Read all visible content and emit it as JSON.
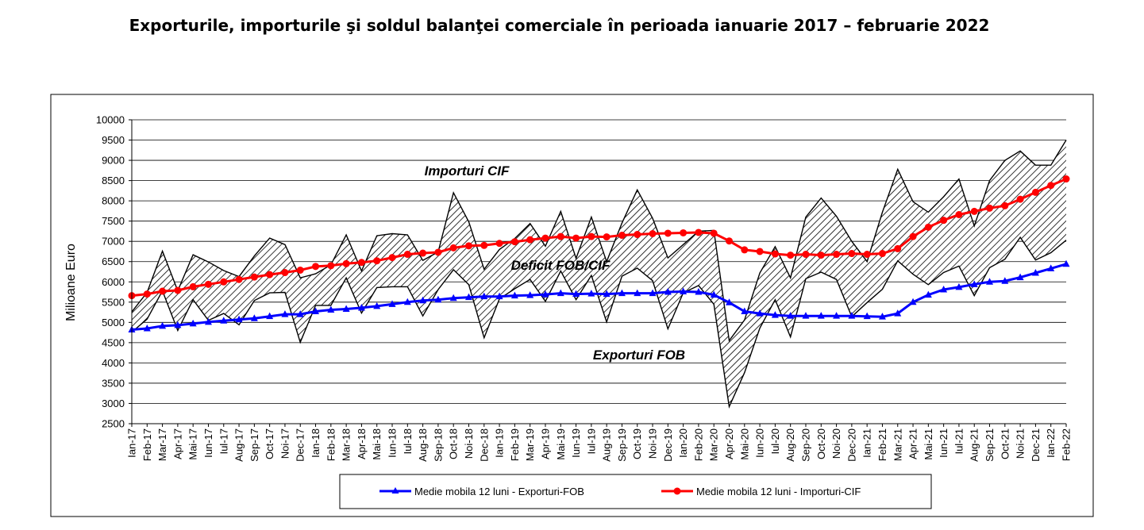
{
  "title": "Exporturile, importurile şi soldul balanţei comerciale în perioada ianuarie 2017 – februarie 2022",
  "colors": {
    "exports_ma": "#0000ff",
    "imports_ma": "#ff0000",
    "monthly_lines": "#000000",
    "hatch": "#000000"
  },
  "chart_data": {
    "type": "line",
    "title": "Exporturile, importurile şi soldul balanţei comerciale în perioada ianuarie 2017 – februarie 2022",
    "ylabel": "Milioane Euro",
    "xlabel": "",
    "ylim": [
      2500,
      10000
    ],
    "ytick_step": 500,
    "grid": "horizontal",
    "legend_position": "bottom",
    "area": "hatched band between monthly Exporturi FOB and Importuri CIF",
    "categories": [
      "Ian-17",
      "Feb-17",
      "Mar-17",
      "Apr-17",
      "Mai-17",
      "Iun-17",
      "Iul-17",
      "Aug-17",
      "Sep-17",
      "Oct-17",
      "Noi-17",
      "Dec-17",
      "Ian-18",
      "Feb-18",
      "Mar-18",
      "Apr-18",
      "Mai-18",
      "Iun-18",
      "Iul-18",
      "Aug-18",
      "Sep-18",
      "Oct-18",
      "Noi-18",
      "Dec-18",
      "Ian-19",
      "Feb-19",
      "Mar-19",
      "Apr-19",
      "Mai-19",
      "Iun-19",
      "Iul-19",
      "Aug-19",
      "Sep-19",
      "Oct-19",
      "Noi-19",
      "Dec-19",
      "Ian-20",
      "Feb-20",
      "Mar-20",
      "Apr-20",
      "Mai-20",
      "Iun-20",
      "Iul-20",
      "Aug-20",
      "Sep-20",
      "Oct-20",
      "Noi-20",
      "Dec-20",
      "Ian-21",
      "Feb-21",
      "Mar-21",
      "Apr-21",
      "Mai-21",
      "Iun-21",
      "Iul-21",
      "Aug-21",
      "Sep-21",
      "Oct-21",
      "Noi-21",
      "Dec-21",
      "Ian-22",
      "Feb-22"
    ],
    "annotations": [
      "Importuri CIF",
      "Deficit FOB/CIF",
      "Exporturi FOB"
    ],
    "series": [
      {
        "name": "Medie mobila 12 luni - Exporturi-FOB",
        "color": "#0000ff",
        "marker": "triangle",
        "values": [
          4820,
          4850,
          4910,
          4930,
          4970,
          5010,
          5040,
          5070,
          5100,
          5150,
          5200,
          5200,
          5270,
          5310,
          5330,
          5360,
          5400,
          5450,
          5500,
          5540,
          5560,
          5600,
          5620,
          5640,
          5640,
          5660,
          5670,
          5690,
          5720,
          5700,
          5710,
          5700,
          5720,
          5720,
          5720,
          5750,
          5760,
          5750,
          5680,
          5490,
          5270,
          5220,
          5180,
          5160,
          5160,
          5160,
          5160,
          5160,
          5150,
          5140,
          5220,
          5500,
          5680,
          5810,
          5870,
          5940,
          6000,
          6020,
          6110,
          6220,
          6330,
          6440
        ]
      },
      {
        "name": "Medie mobila 12 luni - Importuri-CIF",
        "color": "#ff0000",
        "marker": "circle",
        "values": [
          5660,
          5700,
          5770,
          5790,
          5880,
          5940,
          6000,
          6060,
          6120,
          6180,
          6230,
          6290,
          6380,
          6400,
          6450,
          6480,
          6520,
          6600,
          6680,
          6710,
          6730,
          6840,
          6890,
          6900,
          6950,
          6990,
          7040,
          7080,
          7120,
          7080,
          7120,
          7110,
          7150,
          7170,
          7190,
          7200,
          7210,
          7220,
          7200,
          7010,
          6790,
          6750,
          6690,
          6660,
          6680,
          6660,
          6680,
          6700,
          6680,
          6700,
          6820,
          7120,
          7350,
          7520,
          7660,
          7740,
          7820,
          7880,
          8040,
          8210,
          8380,
          8540
        ]
      },
      {
        "name": "Exporturi FOB",
        "color": "#000000",
        "values": [
          4760,
          5080,
          5780,
          4800,
          5560,
          5050,
          5220,
          4940,
          5540,
          5730,
          5740,
          4510,
          5420,
          5420,
          6100,
          5230,
          5860,
          5880,
          5880,
          5160,
          5810,
          6300,
          5930,
          4620,
          5580,
          5830,
          6060,
          5520,
          6270,
          5560,
          6160,
          5010,
          6140,
          6340,
          6030,
          4840,
          5730,
          5910,
          5450,
          2920,
          3760,
          4860,
          5560,
          4640,
          6080,
          6240,
          6060,
          5140,
          5490,
          5820,
          6520,
          6190,
          5930,
          6230,
          6390,
          5660,
          6350,
          6560,
          7100,
          6540,
          6720,
          7030
        ]
      },
      {
        "name": "Importuri CIF",
        "color": "#000000",
        "values": [
          5260,
          5740,
          6760,
          5780,
          6670,
          6490,
          6280,
          6130,
          6640,
          7080,
          6920,
          6100,
          6200,
          6420,
          7160,
          6270,
          7140,
          7190,
          7160,
          6530,
          6740,
          8200,
          7480,
          6310,
          6800,
          7070,
          7440,
          6880,
          7740,
          6580,
          7600,
          6500,
          7450,
          8270,
          7570,
          6590,
          6920,
          7250,
          7270,
          4550,
          5060,
          6220,
          6870,
          6100,
          7600,
          8070,
          7620,
          7000,
          6500,
          7720,
          8780,
          7980,
          7720,
          8100,
          8540,
          7380,
          8500,
          9000,
          9230,
          8880,
          8880,
          9500
        ]
      }
    ]
  },
  "axis": {
    "yticks": [
      "10000",
      "9500",
      "9000",
      "8500",
      "8000",
      "7500",
      "7000",
      "6500",
      "6000",
      "5500",
      "5000",
      "4500",
      "4000",
      "3500",
      "3000",
      "2500"
    ]
  },
  "legend": {
    "exports": "Medie mobila 12 luni - Exporturi-FOB",
    "imports": "Medie mobila 12 luni - Importuri-CIF"
  }
}
